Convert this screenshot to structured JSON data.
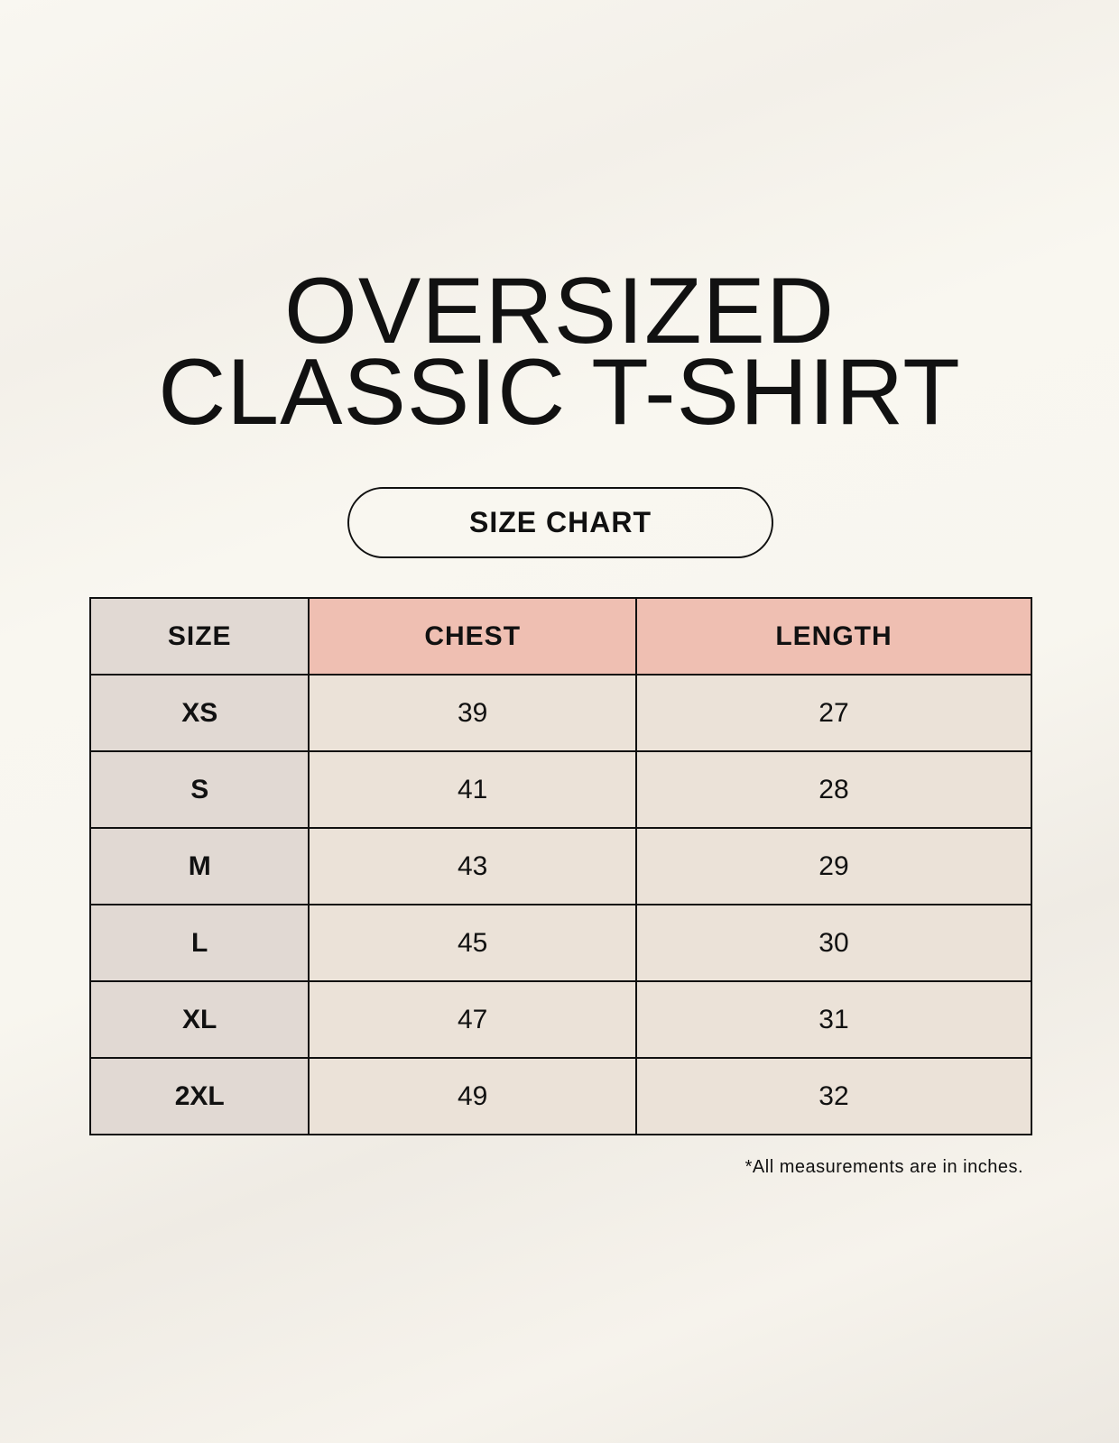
{
  "title": {
    "line1": "OVERSIZED",
    "line2": "CLASSIC T-SHIRT"
  },
  "badge": "SIZE CHART",
  "table": {
    "headers": [
      "SIZE",
      "CHEST",
      "LENGTH"
    ],
    "rows": [
      [
        "XS",
        "39",
        "27"
      ],
      [
        "S",
        "41",
        "28"
      ],
      [
        "M",
        "43",
        "29"
      ],
      [
        "L",
        "45",
        "30"
      ],
      [
        "XL",
        "47",
        "31"
      ],
      [
        "2XL",
        "49",
        "32"
      ]
    ]
  },
  "footnote": "*All measurements are in inches.",
  "colors": {
    "size_column": "#e1d9d3",
    "header_accent": "#efbfb2",
    "cell": "#ebe2d8"
  }
}
